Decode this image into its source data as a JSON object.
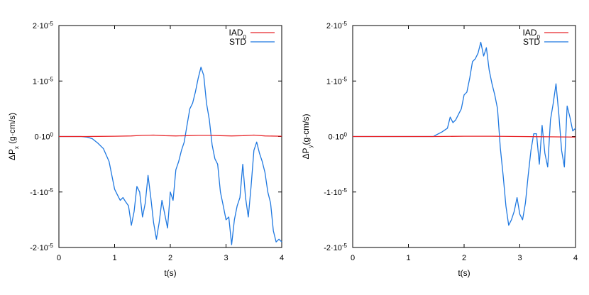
{
  "chart_data": [
    {
      "type": "line",
      "ylabel_main": "ΔP",
      "ylabel_sub": "x",
      "ylabel_units": " (g·cm/s)",
      "xlabel": "t(s)",
      "xlim": [
        0,
        4
      ],
      "ylim": [
        -2e-05,
        2e-05
      ],
      "x_ticks": [
        "0",
        "1",
        "2",
        "3",
        "4"
      ],
      "y_ticks": [
        {
          "value": 2e-05,
          "mant": "2·10",
          "exp": "-5"
        },
        {
          "value": 1e-05,
          "mant": "1·10",
          "exp": "-5"
        },
        {
          "value": 0,
          "mant": "0·10",
          "exp": "0"
        },
        {
          "value": -1e-05,
          "mant": "-1·10",
          "exp": "-5"
        },
        {
          "value": -2e-05,
          "mant": "-2·10",
          "exp": "-5"
        }
      ],
      "legend_position": "top-right",
      "series": [
        {
          "name_main": "IAD",
          "name_sub": "0",
          "color": "#e8262a",
          "x": [
            0,
            0.5,
            1.0,
            1.3,
            1.5,
            1.7,
            1.9,
            2.1,
            2.3,
            2.5,
            2.7,
            2.9,
            3.1,
            3.3,
            3.5,
            3.7,
            4.0
          ],
          "y": [
            0,
            0,
            5e-08,
            1e-07,
            2e-07,
            2.5e-07,
            1.5e-07,
            1e-07,
            1.5e-07,
            2e-07,
            2e-07,
            1.5e-07,
            1e-07,
            1.5e-07,
            2.5e-07,
            1e-07,
            5e-08
          ]
        },
        {
          "name_main": "STD",
          "name_sub": "",
          "color": "#1f78e0",
          "x": [
            0,
            0.4,
            0.5,
            0.6,
            0.7,
            0.8,
            0.9,
            1.0,
            1.05,
            1.1,
            1.15,
            1.2,
            1.25,
            1.3,
            1.35,
            1.4,
            1.45,
            1.5,
            1.55,
            1.6,
            1.65,
            1.7,
            1.75,
            1.8,
            1.85,
            1.9,
            1.95,
            2.0,
            2.05,
            2.1,
            2.15,
            2.2,
            2.25,
            2.3,
            2.35,
            2.4,
            2.45,
            2.5,
            2.55,
            2.6,
            2.65,
            2.7,
            2.75,
            2.8,
            2.85,
            2.9,
            2.95,
            3.0,
            3.05,
            3.1,
            3.15,
            3.2,
            3.25,
            3.3,
            3.35,
            3.4,
            3.45,
            3.5,
            3.55,
            3.6,
            3.65,
            3.7,
            3.75,
            3.8,
            3.85,
            3.9,
            3.95,
            4.0
          ],
          "y": [
            0,
            0,
            -1e-07,
            -4e-07,
            -1.2e-06,
            -2.2e-06,
            -4.5e-06,
            -9.5e-06,
            -1.05e-05,
            -1.15e-05,
            -1.1e-05,
            -1.18e-05,
            -1.25e-05,
            -1.6e-05,
            -1.35e-05,
            -9e-06,
            -1e-05,
            -1.45e-05,
            -1.2e-05,
            -7e-06,
            -1.1e-05,
            -1.55e-05,
            -1.85e-05,
            -1.55e-05,
            -1.15e-05,
            -1.4e-05,
            -1.65e-05,
            -1e-05,
            -1.15e-05,
            -6e-06,
            -4.5e-06,
            -2.5e-06,
            -1e-06,
            2e-06,
            5e-06,
            6e-06,
            8e-06,
            1.05e-05,
            1.25e-05,
            1.1e-05,
            6e-06,
            3e-06,
            -1.5e-06,
            -4e-06,
            -5e-06,
            -1e-05,
            -1.25e-05,
            -1.5e-05,
            -1.45e-05,
            -1.95e-05,
            -1.5e-05,
            -1.25e-05,
            -1.1e-05,
            -5e-06,
            -1.1e-05,
            -1.45e-05,
            -9e-06,
            -2.5e-06,
            -1e-06,
            -3e-06,
            -4.5e-06,
            -6.5e-06,
            -1e-05,
            -1.2e-05,
            -1.7e-05,
            -1.9e-05,
            -1.85e-05,
            -1.9e-05
          ]
        }
      ]
    },
    {
      "type": "line",
      "ylabel_main": "ΔP",
      "ylabel_sub": "y",
      "ylabel_units": "(g·cm/s)",
      "xlabel": "t(s)",
      "xlim": [
        0,
        4
      ],
      "ylim": [
        -2e-05,
        2e-05
      ],
      "x_ticks": [
        "0",
        "1",
        "2",
        "3",
        "4"
      ],
      "y_ticks": [
        {
          "value": 2e-05,
          "mant": "2·10",
          "exp": "-5"
        },
        {
          "value": 1e-05,
          "mant": "1·10",
          "exp": "-5"
        },
        {
          "value": 0,
          "mant": "0·10",
          "exp": "0"
        },
        {
          "value": -1e-05,
          "mant": "-1·10",
          "exp": "-5"
        },
        {
          "value": -2e-05,
          "mant": "-2·10",
          "exp": "-5"
        }
      ],
      "legend_position": "top-right",
      "series": [
        {
          "name_main": "IAD",
          "name_sub": "0",
          "color": "#e8262a",
          "x": [
            0,
            0.5,
            1.0,
            1.5,
            2.0,
            2.5,
            3.0,
            3.5,
            4.0
          ],
          "y": [
            0,
            0,
            0,
            0,
            5e-08,
            5e-08,
            0,
            -5e-08,
            -1e-07
          ]
        },
        {
          "name_main": "STD",
          "name_sub": "",
          "color": "#1f78e0",
          "x": [
            0,
            1.45,
            1.5,
            1.6,
            1.7,
            1.75,
            1.8,
            1.85,
            1.9,
            1.95,
            2.0,
            2.05,
            2.1,
            2.15,
            2.2,
            2.25,
            2.3,
            2.35,
            2.4,
            2.45,
            2.5,
            2.55,
            2.6,
            2.65,
            2.7,
            2.75,
            2.8,
            2.85,
            2.9,
            2.95,
            3.0,
            3.05,
            3.1,
            3.15,
            3.2,
            3.25,
            3.3,
            3.35,
            3.4,
            3.45,
            3.5,
            3.55,
            3.6,
            3.65,
            3.7,
            3.75,
            3.8,
            3.85,
            3.9,
            3.95,
            4.0
          ],
          "y": [
            0,
            0,
            3e-07,
            8e-07,
            1.5e-06,
            3.5e-06,
            2.5e-06,
            3e-06,
            4e-06,
            5e-06,
            7.5e-06,
            8e-06,
            1.05e-05,
            1.35e-05,
            1.4e-05,
            1.5e-05,
            1.7e-05,
            1.45e-05,
            1.6e-05,
            1.2e-05,
            9.5e-06,
            7.5e-06,
            5e-06,
            -2e-06,
            -7e-06,
            -1.25e-05,
            -1.6e-05,
            -1.5e-05,
            -1.35e-05,
            -1.1e-05,
            -1.4e-05,
            -1.5e-05,
            -1.2e-05,
            -7e-06,
            -2.5e-06,
            5e-07,
            5e-07,
            -5e-06,
            2e-06,
            -3e-06,
            -5.5e-06,
            3e-06,
            6e-06,
            9.5e-06,
            4e-06,
            -2.5e-06,
            -5.5e-06,
            5.5e-06,
            3.5e-06,
            1e-06,
            1.5e-06
          ]
        }
      ]
    }
  ]
}
